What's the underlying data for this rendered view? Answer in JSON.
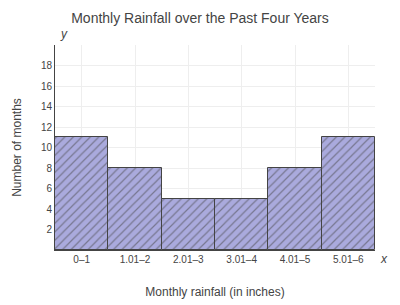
{
  "chart_data": {
    "type": "bar",
    "title": "Monthly Rainfall over the Past Four Years",
    "xlabel": "Monthly rainfall (in inches)",
    "ylabel": "Number of months",
    "categories": [
      "0–1",
      "1.01–2",
      "2.01–3",
      "3.01–4",
      "4.01–5",
      "5.01–6"
    ],
    "values": [
      11,
      8,
      5,
      5,
      8,
      11
    ],
    "color": "#aaaadd",
    "ylim": [
      0,
      20
    ],
    "yticks": [
      2,
      4,
      6,
      8,
      10,
      12,
      14,
      16,
      18
    ],
    "grid": true,
    "annotations": [
      "x",
      "y"
    ]
  }
}
